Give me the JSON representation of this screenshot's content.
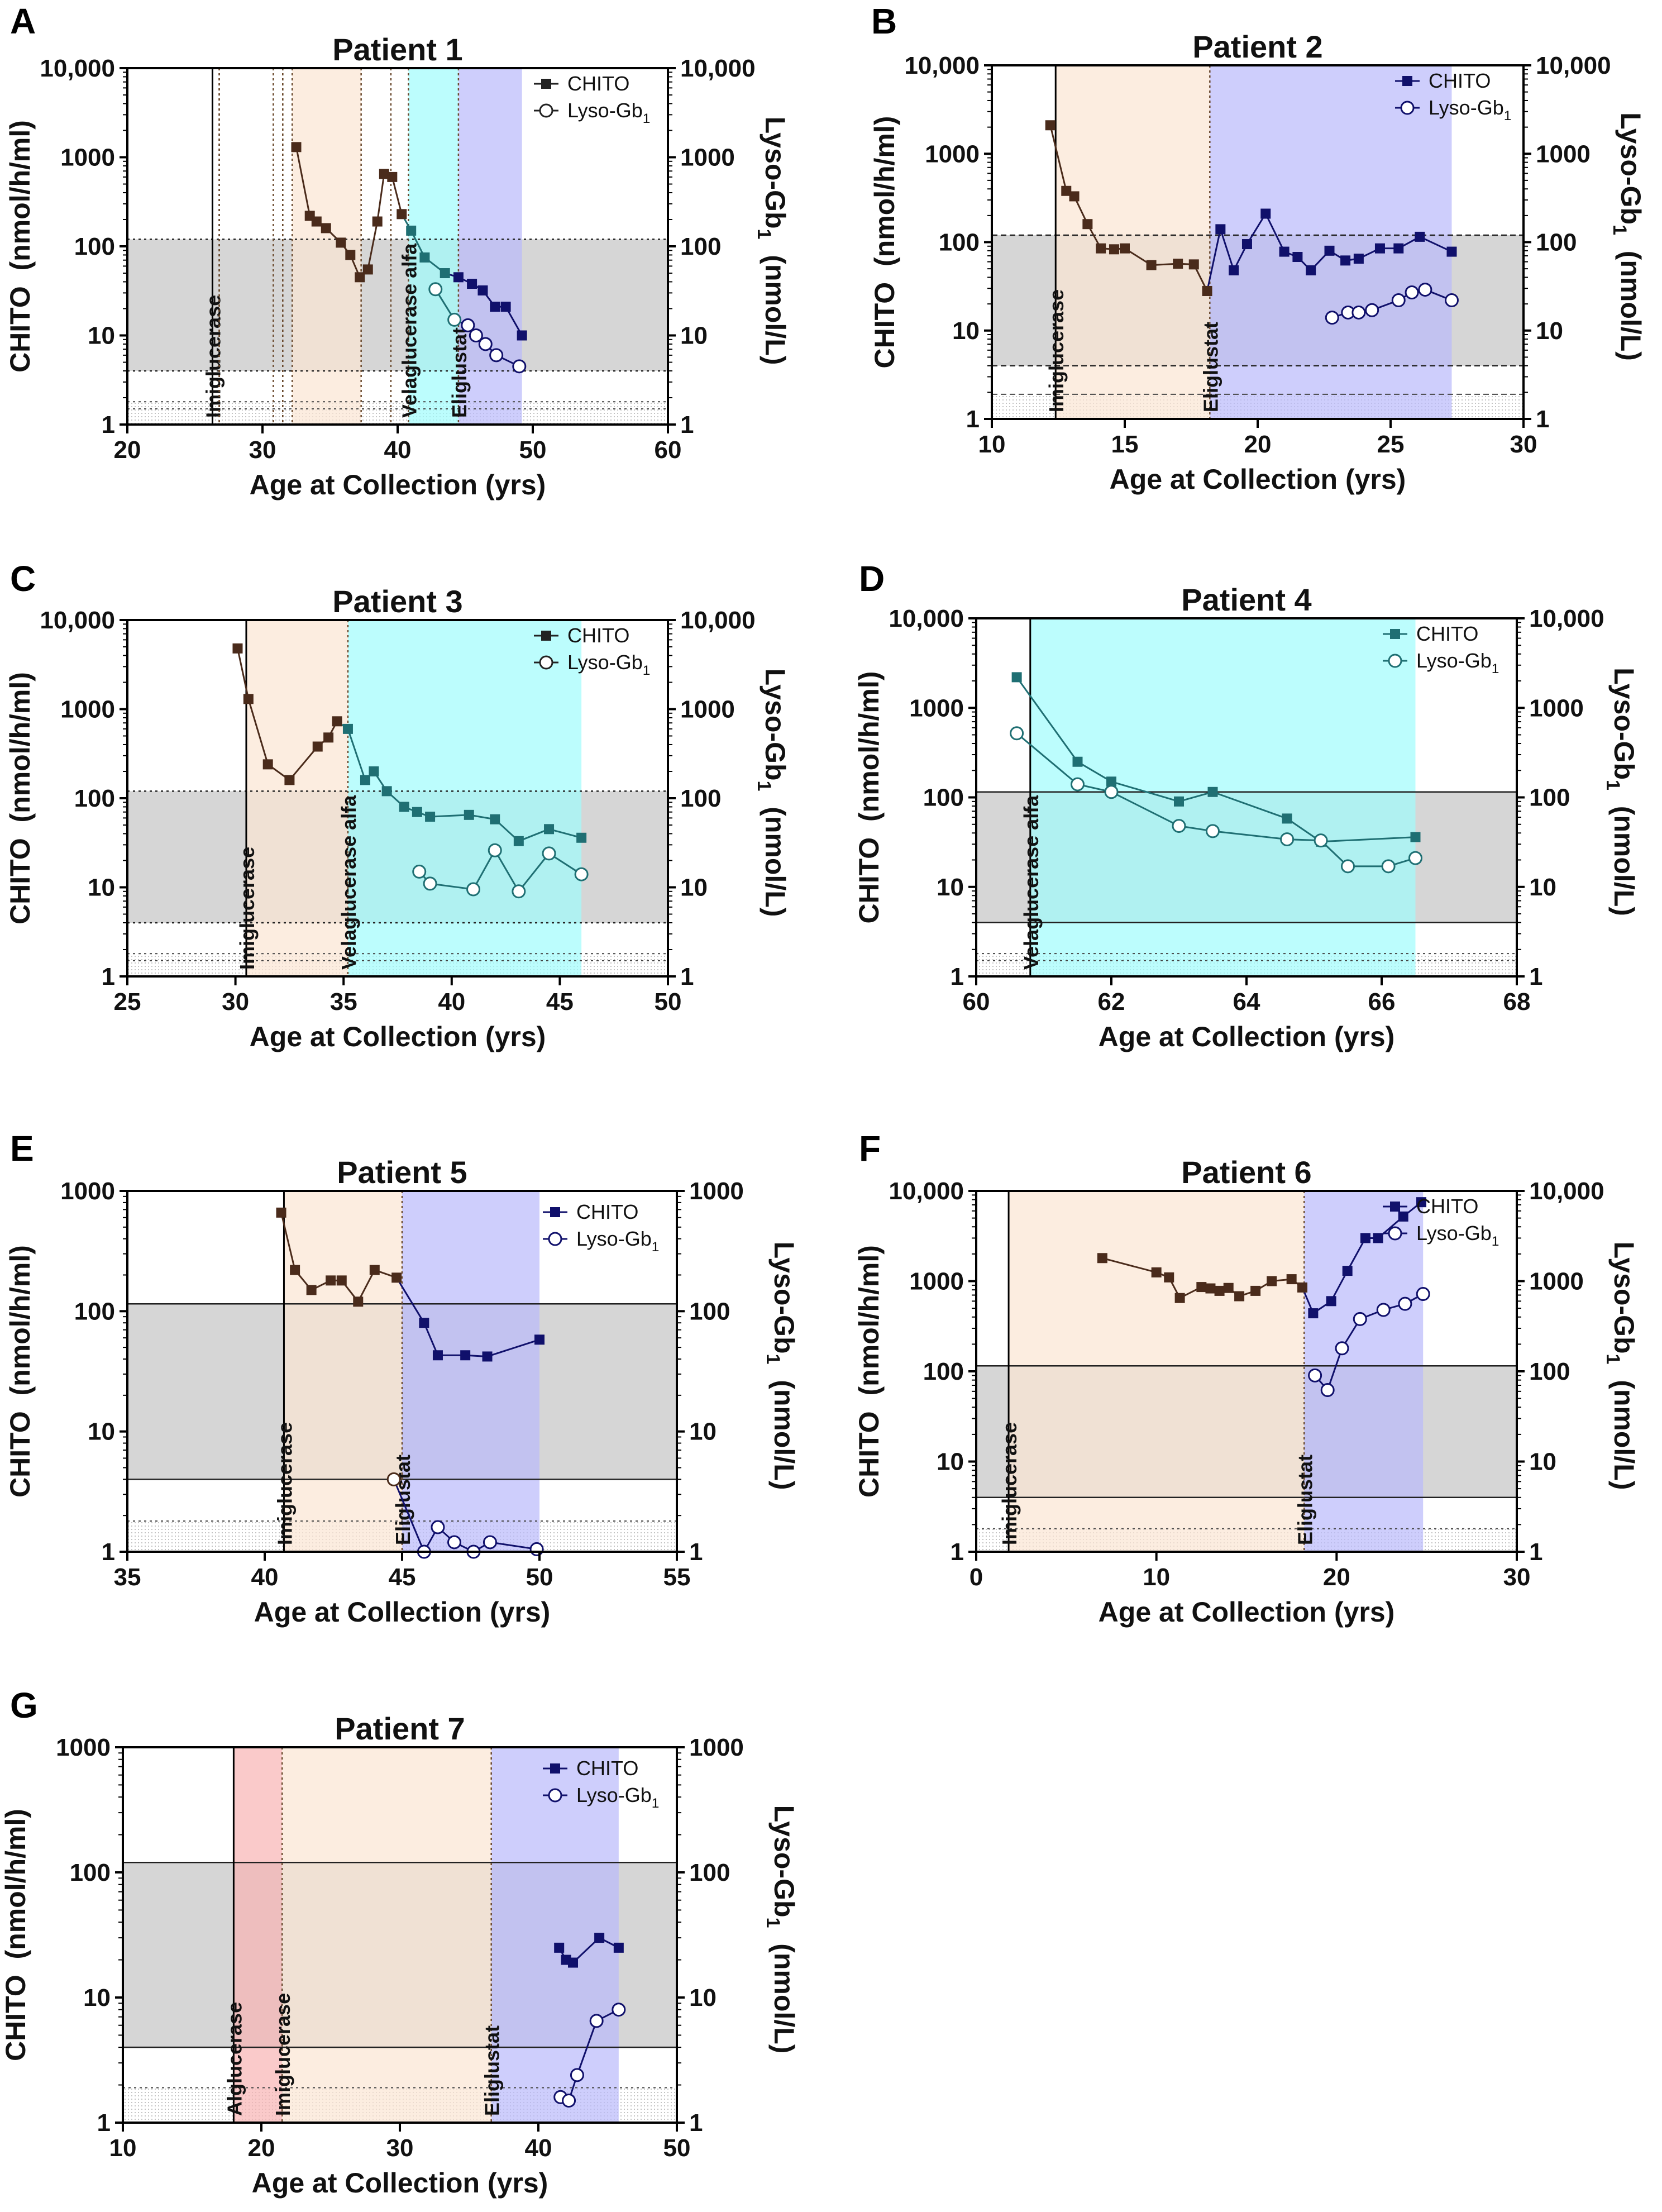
{
  "figure": {
    "y_ticks_1e4": [
      "1",
      "10",
      "100",
      "1000",
      "10,000"
    ],
    "y_ticks_1e3": [
      "1",
      "10",
      "100",
      "1000"
    ],
    "left_label": "CHITO",
    "left_unit": "(nmol/h/ml)",
    "right_label_main": "Lyso-Gb",
    "right_label_sub": "1",
    "right_unit": "(nmol/L)",
    "xlabel": "Age at Collection (yrs)",
    "legend_chito": "CHITO",
    "legend_lyso_main": "Lyso-Gb",
    "legend_lyso_sub": "1",
    "colors": {
      "gray_band": "#d6d6d6",
      "peach": "#fbe6d3",
      "cyan": "#9ffcfc",
      "lavender": "#b9b9fb",
      "pink": "#f8b4b4",
      "cyan_line": "#1f6f73",
      "blue_line": "#10106b",
      "brown_line": "#4a2b1b"
    }
  },
  "chart_data": [
    {
      "panel": "A",
      "title": "Patient 1",
      "type": "line",
      "xlim": [
        20,
        60
      ],
      "xticks": [
        20,
        30,
        40,
        50,
        60
      ],
      "ylim": [
        1,
        10000
      ],
      "yscale": "log",
      "y_tick_set": "1e4",
      "xlabel": "Age at Collection (yrs)",
      "ylabel": "CHITO (nmol/h/ml)",
      "y2label": "Lyso-Gb1 (nmol/L)",
      "gray_band": [
        4,
        120
      ],
      "band_style": "dotted",
      "ref_lines": [
        1.8,
        1.5
      ],
      "treatments": [
        {
          "name": "Imiglucerase",
          "start": 26.3,
          "end": 26.8,
          "color": "none"
        },
        {
          "name": "",
          "start": 30.8,
          "end": 31.5,
          "color": "none"
        },
        {
          "name": "",
          "start": 32.2,
          "end": 37.3,
          "color": "peach"
        },
        {
          "name": "Velaglucerase alfa",
          "start": 40.8,
          "end": 44.5,
          "color": "cyan"
        },
        {
          "name": "Eliglustat",
          "start": 44.5,
          "end": 49.2,
          "color": "lavender"
        }
      ],
      "extra_vlines": [
        39.5
      ],
      "series": [
        {
          "name": "CHITO",
          "marker": "square",
          "x": [
            32.5,
            33.5,
            34,
            34.7,
            35.8,
            36.5,
            37.2,
            37.8,
            38.5,
            39,
            39.6,
            40.3,
            41,
            42,
            43.5,
            44.5,
            45.5,
            46.3,
            47.2,
            48,
            49.2
          ],
          "y": [
            1300,
            220,
            190,
            160,
            110,
            80,
            45,
            55,
            190,
            650,
            600,
            230,
            150,
            75,
            50,
            45,
            38,
            32,
            21,
            21,
            10
          ]
        },
        {
          "name": "Lyso-Gb1",
          "marker": "circle",
          "x": [
            42.8,
            44.2,
            45.2,
            45.8,
            46.5,
            47.3,
            49
          ],
          "y": [
            33,
            15,
            13,
            10,
            8,
            6,
            4.5
          ]
        }
      ]
    },
    {
      "panel": "B",
      "title": "Patient 2",
      "type": "line",
      "xlim": [
        10,
        30
      ],
      "xticks": [
        10,
        15,
        20,
        25,
        30
      ],
      "ylim": [
        1,
        10000
      ],
      "yscale": "log",
      "y_tick_set": "1e4",
      "xlabel": "Age at Collection (yrs)",
      "ylabel": "CHITO (nmol/h/ml)",
      "y2label": "Lyso-Gb1 (nmol/L)",
      "gray_band": [
        4,
        120
      ],
      "band_style": "dashed",
      "ref_lines": [
        1.9
      ],
      "treatments": [
        {
          "name": "Imiglucerase",
          "start": 12.4,
          "end": 18.2,
          "color": "peach"
        },
        {
          "name": "Eliglustat",
          "start": 18.2,
          "end": 27.3,
          "color": "lavender"
        }
      ],
      "extra_vlines": [],
      "series": [
        {
          "name": "CHITO",
          "marker": "square",
          "x": [
            12.2,
            12.8,
            13.1,
            13.6,
            14.1,
            14.6,
            15,
            16,
            17,
            17.6,
            18.1,
            18.6,
            19.1,
            19.6,
            20.3,
            21,
            21.5,
            22,
            22.7,
            23.3,
            23.8,
            24.6,
            25.3,
            26.1,
            27.3
          ],
          "y": [
            2100,
            380,
            330,
            160,
            85,
            83,
            85,
            55,
            57,
            56,
            28,
            140,
            48,
            95,
            210,
            78,
            68,
            48,
            80,
            62,
            65,
            85,
            85,
            115,
            78
          ]
        },
        {
          "name": "Lyso-Gb1",
          "marker": "circle",
          "x": [
            22.8,
            23.4,
            23.8,
            24.3,
            25.3,
            25.8,
            26.3,
            27.3
          ],
          "y": [
            14,
            16,
            16,
            17,
            22,
            27,
            29,
            22
          ]
        }
      ]
    },
    {
      "panel": "C",
      "title": "Patient 3",
      "type": "line",
      "xlim": [
        25,
        50
      ],
      "xticks": [
        25,
        30,
        35,
        40,
        45,
        50
      ],
      "ylim": [
        1,
        10000
      ],
      "yscale": "log",
      "y_tick_set": "1e4",
      "xlabel": "Age at Collection (yrs)",
      "ylabel": "CHITO (nmol/h/ml)",
      "y2label": "Lyso-Gb1 (nmol/L)",
      "gray_band": [
        4,
        120
      ],
      "band_style": "dotted",
      "ref_lines": [
        1.8,
        1.5
      ],
      "treatments": [
        {
          "name": "Imiglucerase",
          "start": 30.5,
          "end": 35.2,
          "color": "peach"
        },
        {
          "name": "Velaglucerase alfa",
          "start": 35.2,
          "end": 46,
          "color": "cyan"
        }
      ],
      "extra_vlines": [],
      "series": [
        {
          "name": "CHITO",
          "marker": "square",
          "x": [
            30.1,
            30.6,
            31.5,
            32.5,
            33.8,
            34.3,
            34.7,
            35.2,
            36,
            36.4,
            37,
            37.8,
            38.4,
            39,
            40.8,
            42,
            43.1,
            44.5,
            46
          ],
          "y": [
            4800,
            1300,
            240,
            160,
            380,
            480,
            730,
            600,
            160,
            200,
            120,
            80,
            70,
            62,
            65,
            58,
            33,
            45,
            36
          ]
        },
        {
          "name": "Lyso-Gb1",
          "marker": "circle",
          "x": [
            38.5,
            39,
            41,
            42,
            43.1,
            44.5,
            46
          ],
          "y": [
            15,
            11,
            9.5,
            26,
            9,
            24,
            14
          ]
        }
      ]
    },
    {
      "panel": "D",
      "title": "Patient 4",
      "type": "line",
      "xlim": [
        60,
        68
      ],
      "xticks": [
        60,
        62,
        64,
        66,
        68
      ],
      "ylim": [
        1,
        10000
      ],
      "yscale": "log",
      "y_tick_set": "1e4",
      "xlabel": "Age at Collection (yrs)",
      "ylabel": "CHITO (nmol/h/ml)",
      "y2label": "Lyso-Gb1 (nmol/L)",
      "gray_band": [
        4,
        115
      ],
      "band_style": "solid",
      "ref_lines": [
        1.8,
        1.5
      ],
      "treatments": [
        {
          "name": "Velaglucerase alfa",
          "start": 60.8,
          "end": 66.5,
          "color": "cyan"
        }
      ],
      "extra_vlines": [],
      "series": [
        {
          "name": "CHITO",
          "marker": "square",
          "x": [
            60.6,
            61.5,
            62,
            63,
            63.5,
            64.6,
            65.1,
            66.5
          ],
          "y": [
            2200,
            250,
            150,
            90,
            115,
            58,
            32,
            36
          ]
        },
        {
          "name": "Lyso-Gb1",
          "marker": "circle",
          "x": [
            60.6,
            61.5,
            62,
            63,
            63.5,
            64.6,
            65.1,
            65.5,
            66.1,
            66.5
          ],
          "y": [
            520,
            140,
            115,
            48,
            42,
            34,
            33,
            17,
            17,
            21
          ]
        }
      ]
    },
    {
      "panel": "E",
      "title": "Patient 5",
      "type": "line",
      "xlim": [
        35,
        55
      ],
      "xticks": [
        35,
        40,
        45,
        50,
        55
      ],
      "ylim": [
        1,
        1000
      ],
      "yscale": "log",
      "y_tick_set": "1e3",
      "xlabel": "Age at Collection (yrs)",
      "ylabel": "CHITO (nmol/h/ml)",
      "y2label": "Lyso-Gb1 (nmol/L)",
      "gray_band": [
        4,
        115
      ],
      "band_style": "solid",
      "ref_lines": [
        1.8
      ],
      "treatments": [
        {
          "name": "Imiglucerase",
          "start": 40.7,
          "end": 45,
          "color": "peach"
        },
        {
          "name": "Eliglustat",
          "start": 45,
          "end": 50,
          "color": "lavender"
        }
      ],
      "extra_vlines": [],
      "series": [
        {
          "name": "CHITO",
          "marker": "square",
          "x": [
            40.6,
            41.1,
            41.7,
            42.4,
            42.8,
            43.4,
            44,
            44.8,
            45.8,
            46.3,
            47.3,
            48.1,
            50
          ],
          "y": [
            660,
            220,
            150,
            180,
            180,
            120,
            220,
            190,
            80,
            43,
            43,
            42,
            58
          ]
        },
        {
          "name": "Lyso-Gb1",
          "marker": "circle",
          "x": [
            44.7,
            45.8,
            46.3,
            46.9,
            47.6,
            48.2,
            49.9
          ],
          "y": [
            4,
            1,
            1.6,
            1.2,
            1,
            1.2,
            1.05
          ]
        }
      ]
    },
    {
      "panel": "F",
      "title": "Patient 6",
      "type": "line",
      "xlim": [
        0,
        30
      ],
      "xticks": [
        0,
        10,
        20,
        30
      ],
      "ylim": [
        1,
        10000
      ],
      "yscale": "log",
      "y_tick_set": "1e4",
      "xlabel": "Age at Collection (yrs)",
      "ylabel": "CHITO (nmol/h/ml)",
      "y2label": "Lyso-Gb1 (nmol/L)",
      "gray_band": [
        4,
        115
      ],
      "band_style": "solid",
      "ref_lines": [
        1.8
      ],
      "treatments": [
        {
          "name": "Imiglucerase",
          "start": 1.8,
          "end": 18.2,
          "color": "peach"
        },
        {
          "name": "Eliglustat",
          "start": 18.2,
          "end": 24.8,
          "color": "lavender"
        }
      ],
      "extra_vlines": [],
      "series": [
        {
          "name": "CHITO",
          "marker": "square",
          "x": [
            7,
            10,
            10.7,
            11.3,
            12.5,
            13,
            13.5,
            14,
            14.6,
            15.5,
            16.4,
            17.5,
            18.1,
            18.7,
            19.7,
            20.6,
            21.6,
            22.3,
            23.7,
            24.7
          ],
          "y": [
            1800,
            1250,
            1100,
            650,
            860,
            830,
            780,
            840,
            680,
            780,
            1000,
            1050,
            850,
            440,
            600,
            1300,
            3000,
            3000,
            5200,
            7500
          ]
        },
        {
          "name": "Lyso-Gb1",
          "marker": "circle",
          "x": [
            18.8,
            19.5,
            20.3,
            21.3,
            22.6,
            23.8,
            24.8
          ],
          "y": [
            90,
            62,
            180,
            380,
            480,
            560,
            720
          ]
        }
      ]
    },
    {
      "panel": "G",
      "title": "Patient 7",
      "type": "line",
      "xlim": [
        10,
        50
      ],
      "xticks": [
        10,
        20,
        30,
        40,
        50
      ],
      "ylim": [
        1,
        1000
      ],
      "yscale": "log",
      "y_tick_set": "1e3",
      "xlabel": "Age at Collection (yrs)",
      "ylabel": "CHITO (nmol/h/ml)",
      "y2label": "Lyso-Gb1 (nmol/L)",
      "gray_band": [
        4,
        120
      ],
      "band_style": "solid",
      "ref_lines": [
        1.9
      ],
      "treatments": [
        {
          "name": "Alglucerase",
          "start": 18,
          "end": 21.5,
          "color": "pink"
        },
        {
          "name": "Imiglucerase",
          "start": 21.5,
          "end": 36.6,
          "color": "peach"
        },
        {
          "name": "Eliglustat",
          "start": 36.6,
          "end": 45.8,
          "color": "lavender"
        }
      ],
      "extra_vlines": [],
      "series": [
        {
          "name": "CHITO",
          "marker": "square",
          "x": [
            41.5,
            42,
            42.5,
            44.4,
            45.8
          ],
          "y": [
            25,
            20,
            19,
            30,
            25
          ]
        },
        {
          "name": "Lyso-Gb1",
          "marker": "circle",
          "x": [
            41.6,
            42.2,
            42.8,
            44.2,
            45.8
          ],
          "y": [
            1.6,
            1.5,
            2.4,
            6.5,
            8
          ]
        }
      ]
    }
  ]
}
